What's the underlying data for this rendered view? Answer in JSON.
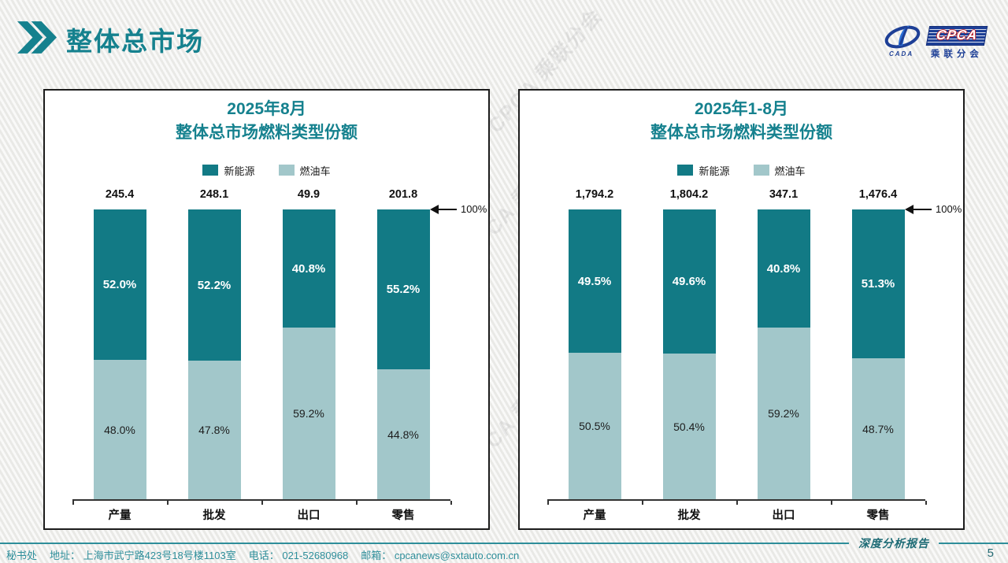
{
  "header": {
    "title": "整体总市场",
    "logo": {
      "brand": "CPCA",
      "brand_sub": "乘联分会",
      "emblem_text": "CADA"
    }
  },
  "colors": {
    "title_teal": "#15818E",
    "nev": "#127A85",
    "ice": "#A2C7CA",
    "footer_teal": "#2F8F9B"
  },
  "watermark_text": "CPCA 乘联分会",
  "chart_data": [
    {
      "type": "stacked-bar-percent",
      "title_line1": "2025年8月",
      "title_line2": "整体总市场燃料类型份额",
      "legend": [
        "新能源",
        "燃油车"
      ],
      "categories": [
        "产量",
        "批发",
        "出口",
        "零售"
      ],
      "totals": [
        "245.4",
        "248.1",
        "49.9",
        "201.8"
      ],
      "series": [
        {
          "name": "新能源",
          "values": [
            52.0,
            52.2,
            40.8,
            55.2
          ],
          "labels": [
            "52.0%",
            "52.2%",
            "40.8%",
            "55.2%"
          ]
        },
        {
          "name": "燃油车",
          "values": [
            48.0,
            47.8,
            59.2,
            44.8
          ],
          "labels": [
            "48.0%",
            "47.8%",
            "59.2%",
            "44.8%"
          ]
        }
      ],
      "axis_marker": "100%",
      "ylim": [
        0,
        100
      ],
      "legend_position": "top"
    },
    {
      "type": "stacked-bar-percent",
      "title_line1": "2025年1-8月",
      "title_line2": "整体总市场燃料类型份额",
      "legend": [
        "新能源",
        "燃油车"
      ],
      "categories": [
        "产量",
        "批发",
        "出口",
        "零售"
      ],
      "totals": [
        "1,794.2",
        "1,804.2",
        "347.1",
        "1,476.4"
      ],
      "series": [
        {
          "name": "新能源",
          "values": [
            49.5,
            49.6,
            40.8,
            51.3
          ],
          "labels": [
            "49.5%",
            "49.6%",
            "40.8%",
            "51.3%"
          ]
        },
        {
          "name": "燃油车",
          "values": [
            50.5,
            50.4,
            59.2,
            48.7
          ],
          "labels": [
            "50.5%",
            "50.4%",
            "59.2%",
            "48.7%"
          ]
        }
      ],
      "axis_marker": "100%",
      "ylim": [
        0,
        100
      ],
      "legend_position": "top"
    }
  ],
  "footer": {
    "secretariat": "秘书处",
    "address": "地址： 上海市武宁路423号18号楼1103室",
    "phone": "电话： 021-52680968",
    "email": "邮箱： cpcanews@sxtauto.com.cn",
    "report_label": "深度分析报告",
    "page_number": "5"
  }
}
